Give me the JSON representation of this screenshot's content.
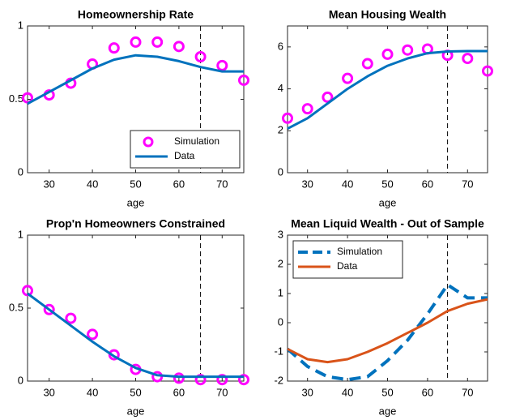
{
  "chart_data": [
    {
      "type": "line",
      "title": "Homeownership Rate",
      "x_label": "age",
      "x": [
        25,
        30,
        35,
        40,
        45,
        50,
        55,
        60,
        65,
        70,
        75
      ],
      "xlim": [
        25,
        75
      ],
      "xticks": [
        30,
        40,
        50,
        60,
        70
      ],
      "ylim": [
        0,
        1
      ],
      "yticks": [
        0,
        0.5,
        1
      ],
      "vline": 65,
      "legend": "bottom-right",
      "series": [
        {
          "name": "Simulation",
          "style": "markers",
          "color": "#ff00ff",
          "values": [
            0.51,
            0.53,
            0.61,
            0.74,
            0.85,
            0.89,
            0.89,
            0.86,
            0.79,
            0.73,
            0.63
          ]
        },
        {
          "name": "Data",
          "style": "solid",
          "color": "#0072bd",
          "values": [
            0.47,
            0.55,
            0.63,
            0.71,
            0.77,
            0.8,
            0.79,
            0.76,
            0.72,
            0.69,
            0.69
          ]
        }
      ]
    },
    {
      "type": "line",
      "title": "Mean Housing Wealth",
      "x_label": "age",
      "x": [
        25,
        30,
        35,
        40,
        45,
        50,
        55,
        60,
        65,
        70,
        75
      ],
      "xlim": [
        25,
        75
      ],
      "xticks": [
        30,
        40,
        50,
        60,
        70
      ],
      "ylim": [
        0,
        7
      ],
      "yticks": [
        0,
        2,
        4,
        6
      ],
      "vline": 65,
      "series": [
        {
          "style": "markers",
          "color": "#ff00ff",
          "values": [
            2.6,
            3.05,
            3.6,
            4.5,
            5.2,
            5.65,
            5.85,
            5.9,
            5.6,
            5.45,
            4.85
          ]
        },
        {
          "style": "solid",
          "color": "#0072bd",
          "values": [
            2.1,
            2.6,
            3.3,
            4.0,
            4.6,
            5.1,
            5.45,
            5.7,
            5.78,
            5.8,
            5.8
          ]
        }
      ]
    },
    {
      "type": "line",
      "title": "Prop'n Homeowners Constrained",
      "x_label": "age",
      "x": [
        25,
        30,
        35,
        40,
        45,
        50,
        55,
        60,
        65,
        70,
        75
      ],
      "xlim": [
        25,
        75
      ],
      "xticks": [
        30,
        40,
        50,
        60,
        70
      ],
      "ylim": [
        0,
        1
      ],
      "yticks": [
        0,
        0.5,
        1
      ],
      "vline": 65,
      "series": [
        {
          "style": "markers",
          "color": "#ff00ff",
          "values": [
            0.62,
            0.49,
            0.43,
            0.32,
            0.18,
            0.08,
            0.03,
            0.02,
            0.01,
            0.01,
            0.01
          ]
        },
        {
          "style": "solid",
          "color": "#0072bd",
          "values": [
            0.6,
            0.49,
            0.38,
            0.27,
            0.17,
            0.09,
            0.04,
            0.03,
            0.03,
            0.03,
            0.03
          ]
        }
      ]
    },
    {
      "type": "line",
      "title": "Mean Liquid Wealth - Out of Sample",
      "x_label": "age",
      "x": [
        25,
        30,
        35,
        40,
        45,
        50,
        55,
        60,
        65,
        70,
        75
      ],
      "xlim": [
        25,
        75
      ],
      "xticks": [
        30,
        40,
        50,
        60,
        70
      ],
      "ylim": [
        -2,
        3
      ],
      "yticks": [
        -2,
        -1,
        0,
        1,
        2,
        3
      ],
      "vline": 65,
      "legend": "top-left",
      "series": [
        {
          "name": "Simulation",
          "style": "dashed",
          "color": "#0072bd",
          "values": [
            -0.9,
            -1.5,
            -1.85,
            -1.95,
            -1.85,
            -1.3,
            -0.6,
            0.3,
            1.3,
            0.85,
            0.85
          ]
        },
        {
          "name": "Data",
          "style": "solid",
          "color": "#d95319",
          "values": [
            -0.9,
            -1.25,
            -1.35,
            -1.25,
            -1.0,
            -0.7,
            -0.35,
            0.0,
            0.4,
            0.65,
            0.8
          ]
        }
      ]
    }
  ]
}
